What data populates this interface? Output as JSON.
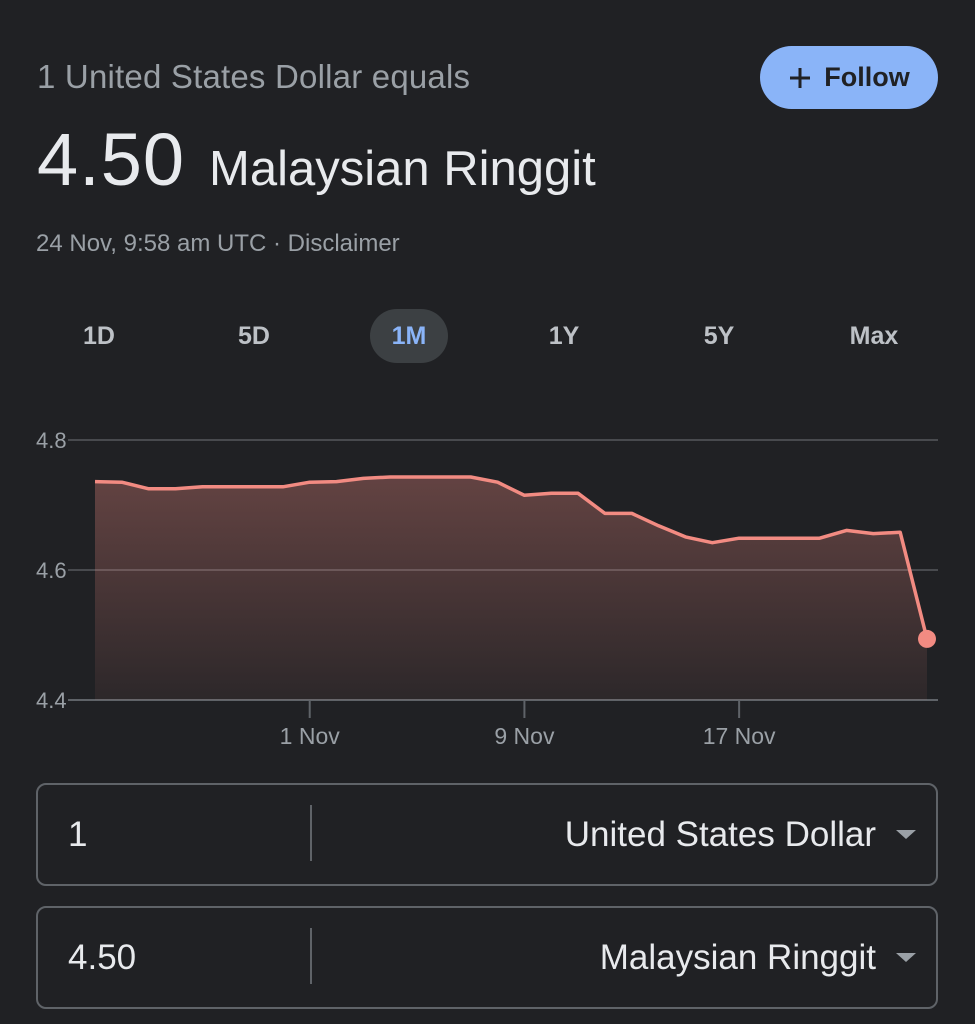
{
  "header": {
    "equals_label": "1 United States Dollar equals",
    "follow_label": "Follow",
    "rate_value": "4.50",
    "target_currency": "Malaysian Ringgit",
    "timestamp": "24 Nov, 9:58 am UTC",
    "separator": "·",
    "disclaimer_label": "Disclaimer"
  },
  "range_tabs": [
    {
      "label": "1D",
      "active": false
    },
    {
      "label": "5D",
      "active": false
    },
    {
      "label": "1M",
      "active": true
    },
    {
      "label": "1Y",
      "active": false
    },
    {
      "label": "5Y",
      "active": false
    },
    {
      "label": "Max",
      "active": false
    }
  ],
  "colors": {
    "background": "#202124",
    "accent": "#8ab4f8",
    "line": "#f28b82",
    "grid": "#5f6368",
    "muted_text": "#9aa0a6"
  },
  "chart_data": {
    "type": "area",
    "x": [
      "2023-10-24",
      "2023-10-25",
      "2023-10-26",
      "2023-10-27",
      "2023-10-28",
      "2023-10-29",
      "2023-10-30",
      "2023-10-31",
      "2023-11-01",
      "2023-11-02",
      "2023-11-03",
      "2023-11-04",
      "2023-11-05",
      "2023-11-06",
      "2023-11-07",
      "2023-11-08",
      "2023-11-09",
      "2023-11-10",
      "2023-11-11",
      "2023-11-12",
      "2023-11-13",
      "2023-11-14",
      "2023-11-15",
      "2023-11-16",
      "2023-11-17",
      "2023-11-18",
      "2023-11-19",
      "2023-11-20",
      "2023-11-21",
      "2023-11-22",
      "2023-11-23",
      "2023-11-24"
    ],
    "values": [
      4.736,
      4.735,
      4.725,
      4.725,
      4.728,
      4.728,
      4.728,
      4.728,
      4.735,
      4.736,
      4.741,
      4.743,
      4.743,
      4.743,
      4.743,
      4.735,
      4.715,
      4.718,
      4.718,
      4.687,
      4.687,
      4.668,
      4.651,
      4.642,
      4.649,
      4.649,
      4.649,
      4.649,
      4.661,
      4.656,
      4.658,
      4.494
    ],
    "x_tick_labels": [
      "1 Nov",
      "9 Nov",
      "17 Nov"
    ],
    "x_ticks": [
      "2023-11-01",
      "2023-11-09",
      "2023-11-17"
    ],
    "y_ticks": [
      4.4,
      4.6,
      4.8
    ],
    "ylim": [
      4.4,
      4.8
    ],
    "grid": true,
    "title": "",
    "xlabel": "",
    "ylabel": ""
  },
  "converter": {
    "from_amount": "1",
    "from_currency": "United States Dollar",
    "to_amount": "4.50",
    "to_currency": "Malaysian Ringgit"
  }
}
